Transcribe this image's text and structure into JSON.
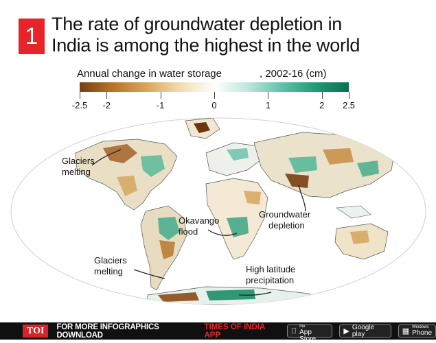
{
  "badge": "1",
  "title": {
    "line1": "The rate of groundwater depletion in",
    "line2": "India is among the highest in the world"
  },
  "subtitle": {
    "left": "Annual change in water storage",
    "right": ", 2002-16 (cm)"
  },
  "scale": {
    "ticks": [
      {
        "label": "-2.5",
        "value": -2.5
      },
      {
        "label": "-2",
        "value": -2
      },
      {
        "label": "-1",
        "value": -1
      },
      {
        "label": "0",
        "value": 0
      },
      {
        "label": "1",
        "value": 1
      },
      {
        "label": "2",
        "value": 2
      },
      {
        "label": "2.5",
        "value": 2.5
      }
    ],
    "colors": [
      "#7a3f14",
      "#b8742a",
      "#dba65a",
      "#f2ddb0",
      "#ffffff",
      "#bfe6dc",
      "#5fc2a8",
      "#1f9c78",
      "#0b6e50"
    ]
  },
  "annotations": {
    "glaciers_na": [
      "Glaciers",
      "melting"
    ],
    "okavango": [
      "Okavango",
      "flood"
    ],
    "groundwater": [
      "Groundwater",
      "depletion"
    ],
    "glaciers_sa": [
      "Glaciers",
      "melting"
    ],
    "high_latitude": [
      "High latitude",
      "precipitation"
    ]
  },
  "footer": {
    "logo": "TOI",
    "text": "FOR MORE INFOGRAPHICS DOWNLOAD",
    "highlight": "TIMES OF INDIA APP",
    "app_store_small": "Available on the",
    "app_store_big": "App Store",
    "google_play": "Google play",
    "windows_small": "Windows",
    "windows_big": "Phone"
  }
}
